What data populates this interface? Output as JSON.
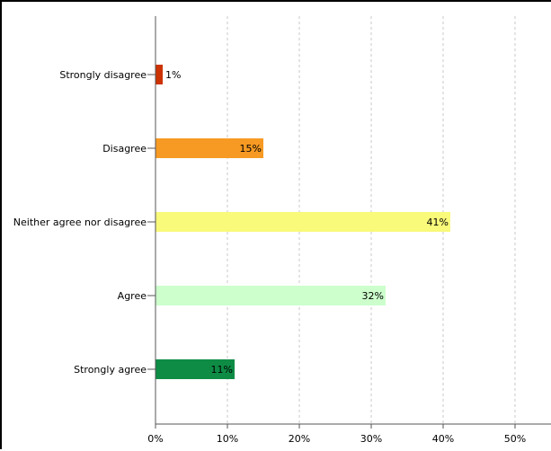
{
  "chart_data": {
    "type": "bar",
    "orientation": "horizontal",
    "categories": [
      "Strongly disagree",
      "Disagree",
      "Neither agree nor disagree",
      "Agree",
      "Strongly agree"
    ],
    "values": [
      1,
      15,
      41,
      32,
      11
    ],
    "data_labels": [
      "1%",
      "15%",
      "41%",
      "32%",
      "11%"
    ],
    "colors": [
      "#cc3300",
      "#f79a23",
      "#f9f97a",
      "#ccffcc",
      "#0e8c45"
    ],
    "x_ticks": [
      0,
      10,
      20,
      30,
      40,
      50
    ],
    "x_tick_labels": [
      "0%",
      "10%",
      "20%",
      "30%",
      "40%",
      "50%"
    ],
    "xlim": [
      0,
      55
    ],
    "xlabel": "",
    "ylabel": "",
    "grid": "vertical-dashed",
    "legend": "none"
  }
}
